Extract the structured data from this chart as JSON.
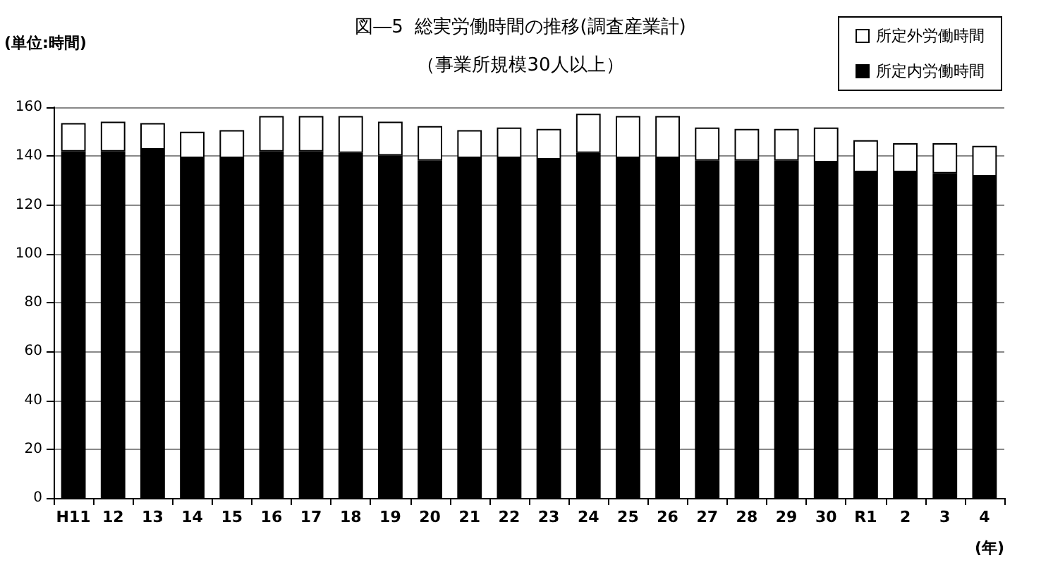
{
  "chart_data": {
    "type": "bar",
    "title": "図―5  総実労働時間の推移(調査産業計)",
    "subtitle": "（事業所規模30人以上）",
    "ylabel": "(単位:時間)",
    "xlabel": "(年)",
    "categories": [
      "H11",
      "12",
      "13",
      "14",
      "15",
      "16",
      "17",
      "18",
      "19",
      "20",
      "21",
      "22",
      "23",
      "24",
      "25",
      "26",
      "27",
      "28",
      "29",
      "30",
      "R1",
      "2",
      "3",
      "4"
    ],
    "stacked": true,
    "legend": "top right",
    "grid": "y",
    "ylim": [
      0,
      160
    ],
    "yticks": [
      0,
      20,
      40,
      60,
      80,
      100,
      120,
      140,
      160
    ],
    "series": [
      {
        "name": "所定内労働時間",
        "color": "#000000",
        "values": [
          141.9,
          141.9,
          142.7,
          139.2,
          139.2,
          141.9,
          141.9,
          141.3,
          140.2,
          138.1,
          139.2,
          139.2,
          138.6,
          141.3,
          139.2,
          139.2,
          138.1,
          138.1,
          138.1,
          137.5,
          133.4,
          133.4,
          132.9,
          131.7
        ]
      },
      {
        "name": "所定外労働時間",
        "color": "#ffffff",
        "values": [
          11.6,
          12.2,
          10.8,
          10.8,
          11.4,
          14.5,
          14.5,
          15.1,
          13.9,
          14.2,
          11.4,
          12.5,
          12.5,
          16.0,
          17.2,
          17.2,
          13.6,
          13.0,
          13.0,
          14.2,
          13.1,
          11.9,
          12.4,
          12.5
        ]
      }
    ]
  }
}
